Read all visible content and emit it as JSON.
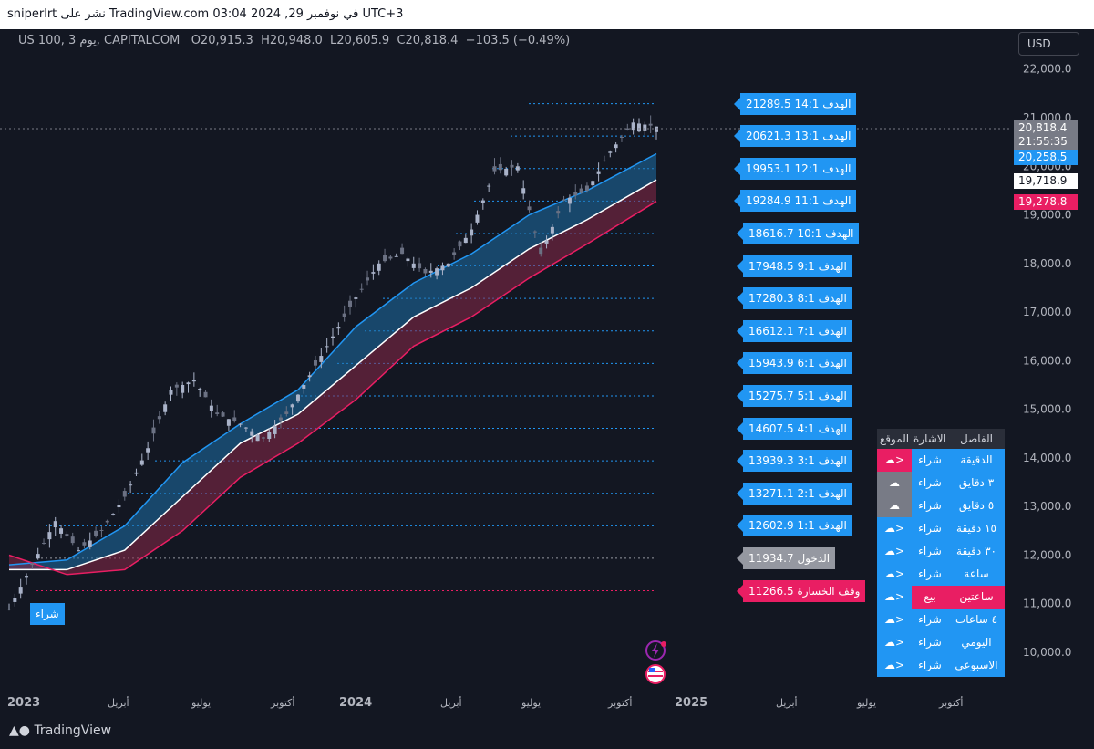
{
  "header": {
    "publish_line": "sniperlrt نشر على TradingView.com في نوفمبر 29, 2024 03:04 UTC+3",
    "symbol": "US 100, يوم 3, CAPITALCOM",
    "open": "O20,915.3",
    "high": "H20,948.0",
    "low": "L20,605.9",
    "close": "C20,818.4",
    "change": "−103.5 (−0.49%)",
    "currency": "USD",
    "brand": "TradingView"
  },
  "colors": {
    "bg": "#131722",
    "up_candle": "#aab3c9",
    "target": "#2196f3",
    "entry": "#9598a1",
    "stop": "#e91e63",
    "ma_fast_band": "#1e6fa8",
    "ma_slow_band": "#8a2848"
  },
  "chart_data": {
    "type": "line",
    "title": "",
    "ylim": [
      9500,
      22400
    ],
    "y_ticks": [
      "22,000.0",
      "21,000.0",
      "20,000.0",
      "19,000.0",
      "18,000.0",
      "17,000.0",
      "16,000.0",
      "15,000.0",
      "14,000.0",
      "13,000.0",
      "12,000.0",
      "11,000.0",
      "10,000.0"
    ],
    "x_ticks": [
      "2023",
      "أبريل",
      "يوليو",
      "أكتوبر",
      "2024",
      "أبريل",
      "يوليو",
      "أكتوبر",
      "2025",
      "أبريل",
      "يوليو",
      "أكتوبر"
    ],
    "price_series": {
      "x": [
        0,
        4,
        8,
        12,
        16,
        20,
        24,
        28,
        32,
        36,
        40,
        44,
        48,
        52,
        56,
        60,
        64,
        68,
        72,
        76,
        80,
        84,
        88,
        92,
        96,
        100,
        104,
        108,
        112
      ],
      "y": [
        10900,
        11800,
        12700,
        12100,
        12500,
        13200,
        14200,
        15400,
        15600,
        14900,
        14700,
        14400,
        14900,
        15700,
        16500,
        17300,
        18000,
        18200,
        17800,
        18000,
        18700,
        19900,
        20000,
        18200,
        19300,
        19500,
        20300,
        20900,
        20818
      ]
    },
    "fast_ma": {
      "x": [
        0,
        10,
        20,
        30,
        40,
        50,
        60,
        70,
        80,
        90,
        100,
        112
      ],
      "y": [
        11800,
        11900,
        12600,
        13900,
        14700,
        15400,
        16700,
        17600,
        18200,
        19000,
        19500,
        20258.5
      ]
    },
    "mid_ma": {
      "x": [
        0,
        10,
        20,
        30,
        40,
        50,
        60,
        70,
        80,
        90,
        100,
        112
      ],
      "y": [
        11700,
        11700,
        12100,
        13200,
        14300,
        14900,
        15900,
        16900,
        17500,
        18300,
        18900,
        19718.9
      ]
    },
    "slow_ma": {
      "x": [
        0,
        10,
        20,
        30,
        40,
        50,
        60,
        70,
        80,
        90,
        100,
        112
      ],
      "y": [
        12000,
        11600,
        11700,
        12500,
        13600,
        14300,
        15200,
        16300,
        16900,
        17700,
        18400,
        19278.8
      ]
    },
    "price_tags": [
      {
        "label": "20,818.4",
        "value": 20818.4,
        "style": "last"
      },
      {
        "label": "21:55:35",
        "value": 20640,
        "style": "last"
      },
      {
        "label": "20,258.5",
        "value": 20258.5,
        "style": "fast"
      },
      {
        "label": "19,718.9",
        "value": 19718.9,
        "style": "mid"
      },
      {
        "label": "19,278.8",
        "value": 19278.8,
        "style": "slow"
      }
    ],
    "levels": [
      {
        "label": "الهدف 14:1 21289.5",
        "value": 21289.5,
        "kind": "target"
      },
      {
        "label": "الهدف 13:1 20621.3",
        "value": 20621.3,
        "kind": "target"
      },
      {
        "label": "الهدف 12:1 19953.1",
        "value": 19953.1,
        "kind": "target"
      },
      {
        "label": "الهدف 11:1 19284.9",
        "value": 19284.9,
        "kind": "target"
      },
      {
        "label": "الهدف 10:1 18616.7",
        "value": 18616.7,
        "kind": "target"
      },
      {
        "label": "الهدف 9:1 17948.5",
        "value": 17948.5,
        "kind": "target"
      },
      {
        "label": "الهدف 8:1 17280.3",
        "value": 17280.3,
        "kind": "target"
      },
      {
        "label": "الهدف 7:1 16612.1",
        "value": 16612.1,
        "kind": "target"
      },
      {
        "label": "الهدف 6:1 15943.9",
        "value": 15943.9,
        "kind": "target"
      },
      {
        "label": "الهدف 5:1 15275.7",
        "value": 15275.7,
        "kind": "target"
      },
      {
        "label": "الهدف 4:1 14607.5",
        "value": 14607.5,
        "kind": "target"
      },
      {
        "label": "الهدف 3:1 13939.3",
        "value": 13939.3,
        "kind": "target"
      },
      {
        "label": "الهدف 2:1 13271.1",
        "value": 13271.1,
        "kind": "target"
      },
      {
        "label": "الهدف 1:1 12602.9",
        "value": 12602.9,
        "kind": "target"
      },
      {
        "label": "الدخول 11934.7",
        "value": 11934.7,
        "kind": "entry"
      },
      {
        "label": "وقف الخسارة 11266.5",
        "value": 11266.5,
        "kind": "stop"
      }
    ],
    "buy_marker": {
      "label": "شراء",
      "value": 10950
    }
  },
  "signals": {
    "headers": [
      "الفاصل",
      "الاشارة",
      "الموقع"
    ],
    "rows": [
      {
        "tf": "الدقيقة",
        "sig": "شراء",
        "pos": "<☁",
        "pos_style": "hot",
        "sig_style": "buy"
      },
      {
        "tf": "٣ دقايق",
        "sig": "شراء",
        "pos": "☁",
        "pos_style": "neutral",
        "sig_style": "buy"
      },
      {
        "tf": "٥ دقايق",
        "sig": "شراء",
        "pos": "☁",
        "pos_style": "neutral",
        "sig_style": "buy"
      },
      {
        "tf": "١٥ دقيقة",
        "sig": "شراء",
        "pos": "<☁",
        "pos_style": "buy",
        "sig_style": "buy"
      },
      {
        "tf": "٣٠ دقيقة",
        "sig": "شراء",
        "pos": "<☁",
        "pos_style": "buy",
        "sig_style": "buy"
      },
      {
        "tf": "ساعة",
        "sig": "شراء",
        "pos": "<☁",
        "pos_style": "buy",
        "sig_style": "buy"
      },
      {
        "tf": "ساعتين",
        "sig": "بيع",
        "pos": "<☁",
        "pos_style": "buy",
        "sig_style": "sell"
      },
      {
        "tf": "٤ ساعات",
        "sig": "شراء",
        "pos": "<☁",
        "pos_style": "buy",
        "sig_style": "buy"
      },
      {
        "tf": "اليومي",
        "sig": "شراء",
        "pos": "<☁",
        "pos_style": "buy",
        "sig_style": "buy"
      },
      {
        "tf": "الاسبوعي",
        "sig": "شراء",
        "pos": "<☁",
        "pos_style": "buy",
        "sig_style": "buy"
      }
    ]
  }
}
